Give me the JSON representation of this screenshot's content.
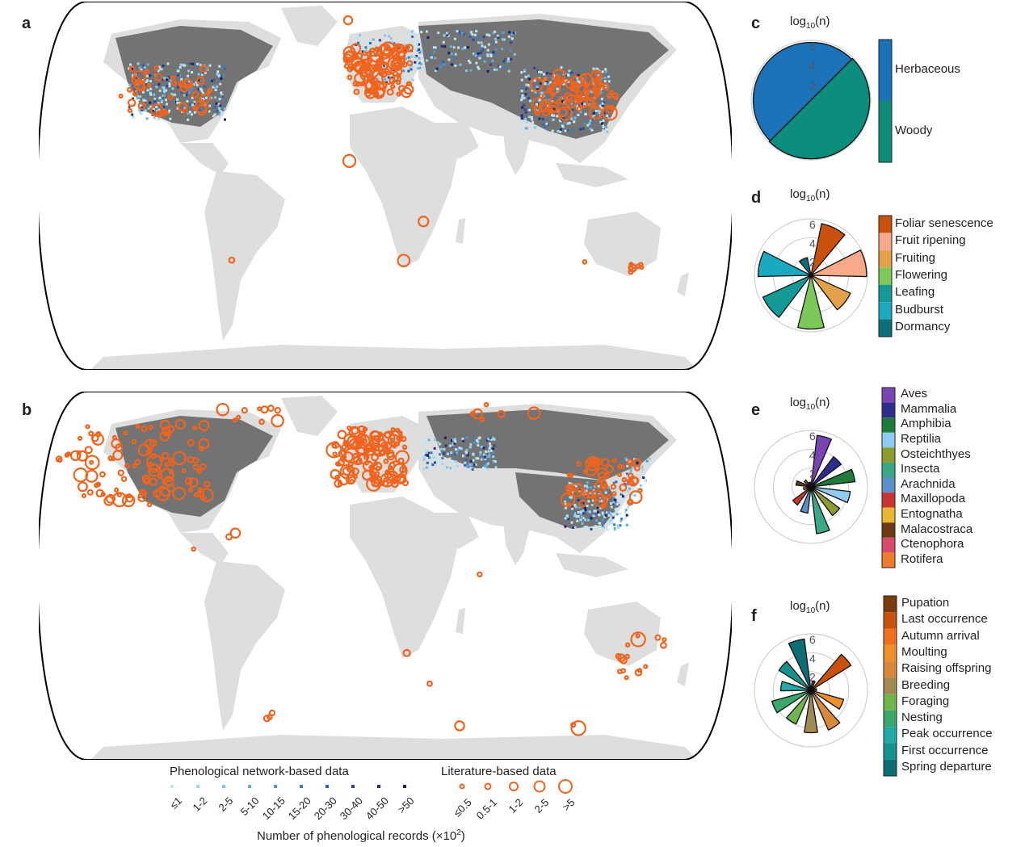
{
  "panels": {
    "a": "a",
    "b": "b",
    "c": "c",
    "d": "d",
    "e": "e",
    "f": "f"
  },
  "legend": {
    "network_title": "Phenological network-based data",
    "literature_title": "Literature-based data",
    "network_bins": [
      "≤1",
      "1-2",
      "2-5",
      "5-10",
      "10-15",
      "15-20",
      "20-30",
      "30-40",
      "40-50",
      ">50"
    ],
    "network_colors": [
      "#b9e7f4",
      "#9fd7ee",
      "#86c6e6",
      "#6aaede",
      "#4f95d2",
      "#3a7cc4",
      "#2e62b5",
      "#25479f",
      "#1d3289",
      "#162070"
    ],
    "literature_bins": [
      "≤0.5",
      "0.5-1",
      "1-2",
      "2-5",
      ">5"
    ],
    "literature_color": "#f0641e",
    "xlabel": "Number of phenological  records (×10",
    "xlabel_sup": "2",
    "xlabel_end": ")"
  },
  "map_colors": {
    "land": "#dedede",
    "network_region": "#737373",
    "outline": "#000000"
  },
  "roses": {
    "title_main": "log",
    "title_sub": "10",
    "title_end": "(n)",
    "radial_ticks": [
      "2",
      "4",
      "6"
    ]
  },
  "chart_data": [
    {
      "panel": "c",
      "type": "polar-bar",
      "title": "log10(n)",
      "radial_range": [
        0,
        6
      ],
      "categories": [
        "Herbaceous",
        "Woody"
      ],
      "values": [
        5.8,
        5.9
      ],
      "colors": [
        "#1a73b8",
        "#0c8c7a"
      ]
    },
    {
      "panel": "d",
      "type": "polar-bar",
      "title": "log10(n)",
      "radial_range": [
        0,
        6
      ],
      "categories": [
        "Foliar senescence",
        "Fruit ripening",
        "Fruiting",
        "Flowering",
        "Leafing",
        "Budburst",
        "Dormancy"
      ],
      "values": [
        5.6,
        5.9,
        4.6,
        5.7,
        5.6,
        5.6,
        1.9
      ],
      "colors": [
        "#c9510c",
        "#f7a98a",
        "#e3a24a",
        "#7cc95a",
        "#149a96",
        "#1aaabf",
        "#0b6e78"
      ]
    },
    {
      "panel": "e",
      "type": "polar-bar",
      "title": "log10(n)",
      "radial_range": [
        0,
        6
      ],
      "categories": [
        "Aves",
        "Mammalia",
        "Amphibia",
        "Reptilia",
        "Osteichthyes",
        "Insecta",
        "Arachnida",
        "Maxillopoda",
        "Entognatha",
        "Malacostraca",
        "Ctenophora",
        "Rotifera"
      ],
      "values": [
        5.5,
        4.0,
        4.7,
        4.2,
        3.8,
        5.0,
        2.8,
        2.4,
        0.8,
        1.6,
        0.9,
        0.5
      ],
      "colors": [
        "#7a44b2",
        "#2e2c8c",
        "#1f7a3c",
        "#8ecbee",
        "#8c9a2e",
        "#3aa888",
        "#5b8fc7",
        "#cc3333",
        "#e8b830",
        "#6b3a10",
        "#d94a6a",
        "#f07b2c"
      ]
    },
    {
      "panel": "f",
      "type": "polar-bar",
      "title": "log10(n)",
      "radial_range": [
        0,
        6
      ],
      "categories": [
        "Pupation",
        "Last occurrence",
        "Autumn arrival",
        "Moulting",
        "Raising offspring",
        "Breeding",
        "Foraging",
        "Nesting",
        "Peak occurrence",
        "First occurrence",
        "Spring departure"
      ],
      "values": [
        1.0,
        5.0,
        0.6,
        3.6,
        4.6,
        4.5,
        3.9,
        4.3,
        3.2,
        4.0,
        5.5
      ],
      "colors": [
        "#7a3a0a",
        "#c9510c",
        "#f07020",
        "#f0902c",
        "#d88a3a",
        "#a08a50",
        "#6fb74a",
        "#3aa86a",
        "#20aaa8",
        "#14928e",
        "#0c6e74"
      ]
    }
  ]
}
